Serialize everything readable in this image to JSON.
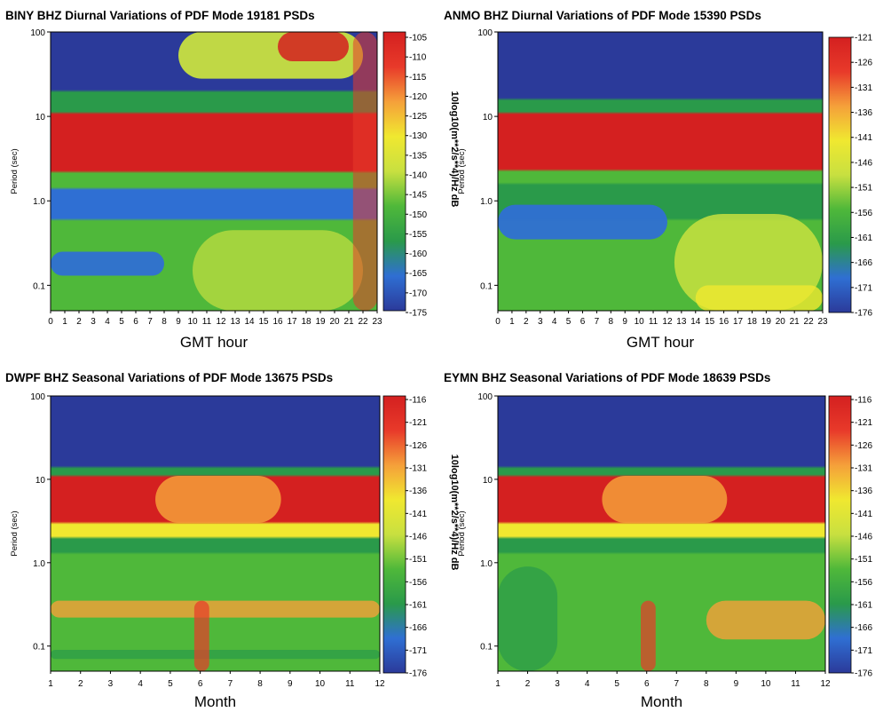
{
  "chart_data": [
    {
      "type": "heatmap",
      "title": "BINY BHZ Diurnal Variations of PDF Mode 19181 PSDs",
      "xlabel": "GMT hour",
      "ylabel": "Period (sec)",
      "x_ticks": [
        "0",
        "1",
        "2",
        "3",
        "4",
        "5",
        "6",
        "7",
        "8",
        "9",
        "10",
        "11",
        "12",
        "13",
        "14",
        "15",
        "16",
        "17",
        "18",
        "19",
        "20",
        "21",
        "22",
        "23"
      ],
      "y_ticks": [
        "100",
        "10",
        "1.0",
        "0.1"
      ],
      "y_scale": "log",
      "ylim": [
        0.05,
        100
      ],
      "colorbar_label": "10log10(m**2/s**4)/Hz dB",
      "colorbar_ticks": [
        "-105",
        "-110",
        "-115",
        "-120",
        "-125",
        "-130",
        "-135",
        "-140",
        "-145",
        "-150",
        "-155",
        "-160",
        "-165",
        "-170",
        "-175"
      ],
      "colorbar_range": [
        -175,
        -105
      ],
      "colormap": [
        "#2b3a9a",
        "#2f6fd3",
        "#2a9a4a",
        "#4fb83a",
        "#c8e040",
        "#f0e830",
        "#f5a03a",
        "#e83a2a",
        "#d42020"
      ]
    },
    {
      "type": "heatmap",
      "title": "ANMO BHZ Diurnal Variations of PDF Mode 15390 PSDs",
      "xlabel": "GMT hour",
      "ylabel": "Period (sec)",
      "x_ticks": [
        "0",
        "1",
        "2",
        "3",
        "4",
        "5",
        "6",
        "7",
        "8",
        "9",
        "10",
        "11",
        "12",
        "13",
        "14",
        "15",
        "16",
        "17",
        "18",
        "19",
        "20",
        "21",
        "22",
        "23"
      ],
      "y_ticks": [
        "100",
        "10",
        "1.0",
        "0.1"
      ],
      "y_scale": "log",
      "ylim": [
        0.05,
        100
      ],
      "colorbar_label": "10log10(m**2/s**4)/Hz dB",
      "colorbar_ticks": [
        "-121",
        "-126",
        "-131",
        "-136",
        "-141",
        "-146",
        "-151",
        "-156",
        "-161",
        "-166",
        "-171",
        "-176"
      ],
      "colorbar_range": [
        -176,
        -121
      ],
      "colormap": [
        "#2b3a9a",
        "#2f6fd3",
        "#2a9a4a",
        "#4fb83a",
        "#c8e040",
        "#f0e830",
        "#f5a03a",
        "#e83a2a",
        "#d42020"
      ]
    },
    {
      "type": "heatmap",
      "title": "DWPF BHZ Seasonal Variations of PDF Mode 13675 PSDs",
      "xlabel": "Month",
      "ylabel": "Period (sec)",
      "x_ticks": [
        "1",
        "2",
        "3",
        "4",
        "5",
        "6",
        "7",
        "8",
        "9",
        "10",
        "11",
        "12"
      ],
      "y_ticks": [
        "100",
        "10",
        "1.0",
        "0.1"
      ],
      "y_scale": "log",
      "ylim": [
        0.05,
        100
      ],
      "colorbar_label": "10log10(m**2/s**4)/Hz dB",
      "colorbar_ticks": [
        "-116",
        "-121",
        "-126",
        "-131",
        "-136",
        "-141",
        "-146",
        "-151",
        "-156",
        "-161",
        "-166",
        "-171",
        "-176"
      ],
      "colorbar_range": [
        -176,
        -116
      ],
      "colormap": [
        "#2b3a9a",
        "#2f6fd3",
        "#2a9a4a",
        "#4fb83a",
        "#c8e040",
        "#f0e830",
        "#f5a03a",
        "#e83a2a",
        "#d42020"
      ]
    },
    {
      "type": "heatmap",
      "title": "EYMN BHZ Seasonal Variations of PDF Mode 18639 PSDs",
      "xlabel": "Month",
      "ylabel": "Period (sec)",
      "x_ticks": [
        "1",
        "2",
        "3",
        "4",
        "5",
        "6",
        "7",
        "8",
        "9",
        "10",
        "11",
        "12"
      ],
      "y_ticks": [
        "100",
        "10",
        "1.0",
        "0.1"
      ],
      "y_scale": "log",
      "ylim": [
        0.05,
        100
      ],
      "colorbar_label": "10log10(m**2/s**4)/Hz dB",
      "colorbar_ticks": [
        "-116",
        "-121",
        "-126",
        "-131",
        "-136",
        "-141",
        "-146",
        "-151",
        "-156",
        "-161",
        "-166",
        "-171",
        "-176"
      ],
      "colorbar_range": [
        -176,
        -116
      ],
      "colormap": [
        "#2b3a9a",
        "#2f6fd3",
        "#2a9a4a",
        "#4fb83a",
        "#c8e040",
        "#f0e830",
        "#f5a03a",
        "#e83a2a",
        "#d42020"
      ]
    }
  ]
}
